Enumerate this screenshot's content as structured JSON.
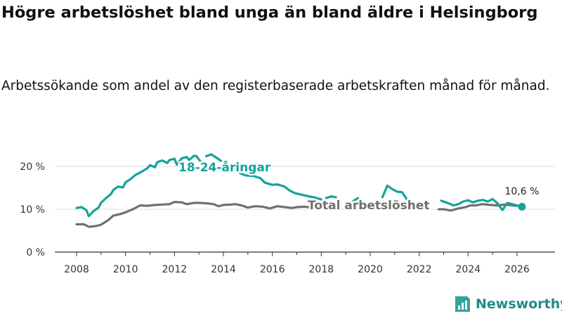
{
  "header": {
    "title": "Högre arbetslöshet bland unga än bland äldre i Helsingborg",
    "subtitle": "Arbetssökande som andel av den registerbaserade arbetskraften månad för månad."
  },
  "brand": {
    "name": "Newsworthy"
  },
  "colors": {
    "youth": "#13a39a",
    "total": "#707070",
    "grid": "#dddddd",
    "brand": "#1e8c86"
  },
  "chart_data": {
    "type": "line",
    "title": "Högre arbetslöshet bland unga än bland äldre i Helsingborg",
    "xlabel": "",
    "ylabel": "",
    "xlim": [
      2007.5,
      2026.7
    ],
    "ylim": [
      0,
      22
    ],
    "x_ticks": [
      2008,
      2010,
      2012,
      2014,
      2016,
      2018,
      2020,
      2022,
      2024,
      2026
    ],
    "x_tick_labels": [
      "2008",
      "2010",
      "2012",
      "2014",
      "2016",
      "2018",
      "2020",
      "2022",
      "2024",
      "2026"
    ],
    "y_ticks": [
      0,
      10,
      20
    ],
    "y_tick_labels": [
      "0 %",
      "10 %",
      "20 %"
    ],
    "grid": true,
    "series": [
      {
        "name": "18-24-åringar",
        "label": "18-24-åringar",
        "color": "#13a39a",
        "segments": [
          [
            [
              2008.0,
              10.3
            ],
            [
              2008.2,
              10.5
            ],
            [
              2008.4,
              9.8
            ],
            [
              2008.5,
              8.4
            ],
            [
              2008.7,
              9.6
            ],
            [
              2008.9,
              10.4
            ],
            [
              2009.0,
              11.5
            ],
            [
              2009.2,
              12.6
            ],
            [
              2009.4,
              13.5
            ],
            [
              2009.5,
              14.5
            ],
            [
              2009.7,
              15.3
            ],
            [
              2009.9,
              15.1
            ],
            [
              2010.0,
              16.3
            ],
            [
              2010.2,
              17.0
            ],
            [
              2010.4,
              18.0
            ],
            [
              2010.5,
              18.3
            ],
            [
              2010.7,
              18.9
            ],
            [
              2010.9,
              19.6
            ],
            [
              2011.0,
              20.3
            ],
            [
              2011.2,
              19.8
            ],
            [
              2011.3,
              21.0
            ],
            [
              2011.5,
              21.4
            ],
            [
              2011.7,
              20.8
            ],
            [
              2011.8,
              21.5
            ],
            [
              2012.0,
              21.8
            ],
            [
              2012.1,
              20.4
            ],
            [
              2012.3,
              21.9
            ],
            [
              2012.5,
              22.2
            ],
            [
              2012.6,
              21.5
            ],
            [
              2012.8,
              22.5
            ],
            [
              2012.9,
              22.4
            ],
            [
              2013.0,
              21.6
            ],
            [
              2013.1,
              21.0
            ]
          ],
          [
            [
              2013.3,
              22.4
            ],
            [
              2013.5,
              22.8
            ],
            [
              2013.7,
              22.1
            ],
            [
              2013.9,
              21.3
            ]
          ],
          [
            [
              2014.3,
              20.0
            ],
            [
              2014.5,
              19.2
            ],
            [
              2014.7,
              18.4
            ],
            [
              2014.9,
              17.9
            ],
            [
              2015.2,
              17.8
            ],
            [
              2015.5,
              17.3
            ],
            [
              2015.7,
              16.2
            ],
            [
              2016.0,
              15.7
            ],
            [
              2016.2,
              15.8
            ],
            [
              2016.5,
              15.3
            ],
            [
              2016.7,
              14.4
            ],
            [
              2016.9,
              13.8
            ],
            [
              2017.2,
              13.4
            ],
            [
              2017.5,
              13.0
            ],
            [
              2017.7,
              12.8
            ],
            [
              2018.0,
              12.3
            ]
          ],
          [
            [
              2018.2,
              12.6
            ],
            [
              2018.4,
              13.0
            ],
            [
              2018.6,
              12.8
            ]
          ],
          [
            [
              2019.3,
              11.9
            ],
            [
              2019.5,
              12.6
            ]
          ],
          [
            [
              2020.5,
              12.8
            ],
            [
              2020.7,
              15.5
            ],
            [
              2020.9,
              14.7
            ],
            [
              2021.1,
              14.1
            ],
            [
              2021.3,
              14.0
            ],
            [
              2021.5,
              12.3
            ]
          ],
          [
            [
              2022.9,
              12.0
            ],
            [
              2023.2,
              11.4
            ],
            [
              2023.4,
              10.9
            ],
            [
              2023.6,
              11.2
            ],
            [
              2023.8,
              11.8
            ],
            [
              2024.0,
              12.1
            ],
            [
              2024.2,
              11.6
            ],
            [
              2024.4,
              12.0
            ],
            [
              2024.6,
              12.2
            ],
            [
              2024.8,
              11.8
            ],
            [
              2025.0,
              12.4
            ],
            [
              2025.2,
              11.4
            ],
            [
              2025.4,
              9.8
            ],
            [
              2025.6,
              11.5
            ],
            [
              2025.8,
              11.2
            ],
            [
              2026.0,
              10.9
            ],
            [
              2026.2,
              10.6
            ]
          ]
        ]
      },
      {
        "name": "Total arbetslöshet",
        "label": "Total arbetslöshet",
        "color": "#707070",
        "segments": [
          [
            [
              2008.0,
              6.5
            ],
            [
              2008.3,
              6.5
            ],
            [
              2008.5,
              5.9
            ],
            [
              2008.8,
              6.1
            ],
            [
              2009.0,
              6.4
            ],
            [
              2009.3,
              7.5
            ],
            [
              2009.5,
              8.5
            ],
            [
              2009.8,
              8.9
            ],
            [
              2010.0,
              9.3
            ],
            [
              2010.3,
              10.0
            ],
            [
              2010.6,
              10.9
            ],
            [
              2010.9,
              10.8
            ],
            [
              2011.2,
              11.0
            ],
            [
              2011.5,
              11.1
            ],
            [
              2011.8,
              11.2
            ],
            [
              2012.0,
              11.7
            ],
            [
              2012.3,
              11.6
            ],
            [
              2012.5,
              11.2
            ],
            [
              2012.8,
              11.5
            ],
            [
              2013.0,
              11.5
            ],
            [
              2013.3,
              11.4
            ],
            [
              2013.6,
              11.2
            ],
            [
              2013.8,
              10.7
            ],
            [
              2014.0,
              11.0
            ],
            [
              2014.3,
              11.1
            ],
            [
              2014.5,
              11.2
            ],
            [
              2014.8,
              10.8
            ],
            [
              2015.0,
              10.4
            ],
            [
              2015.3,
              10.7
            ],
            [
              2015.6,
              10.6
            ],
            [
              2015.9,
              10.2
            ],
            [
              2016.2,
              10.7
            ],
            [
              2016.5,
              10.5
            ],
            [
              2016.8,
              10.3
            ],
            [
              2017.0,
              10.5
            ],
            [
              2017.3,
              10.6
            ],
            [
              2017.6,
              10.4
            ]
          ],
          [
            [
              2022.8,
              10.0
            ],
            [
              2023.0,
              10.0
            ],
            [
              2023.3,
              9.7
            ],
            [
              2023.6,
              10.2
            ],
            [
              2023.9,
              10.5
            ],
            [
              2024.1,
              10.9
            ],
            [
              2024.3,
              10.9
            ],
            [
              2024.6,
              11.2
            ],
            [
              2024.9,
              11.0
            ],
            [
              2025.2,
              10.9
            ],
            [
              2025.5,
              11.1
            ],
            [
              2025.8,
              10.9
            ],
            [
              2026.0,
              10.8
            ],
            [
              2026.2,
              10.6
            ]
          ]
        ]
      }
    ],
    "annotations": [
      {
        "text": "10,6 %",
        "x": 2026.2,
        "y": 10.6
      }
    ]
  }
}
